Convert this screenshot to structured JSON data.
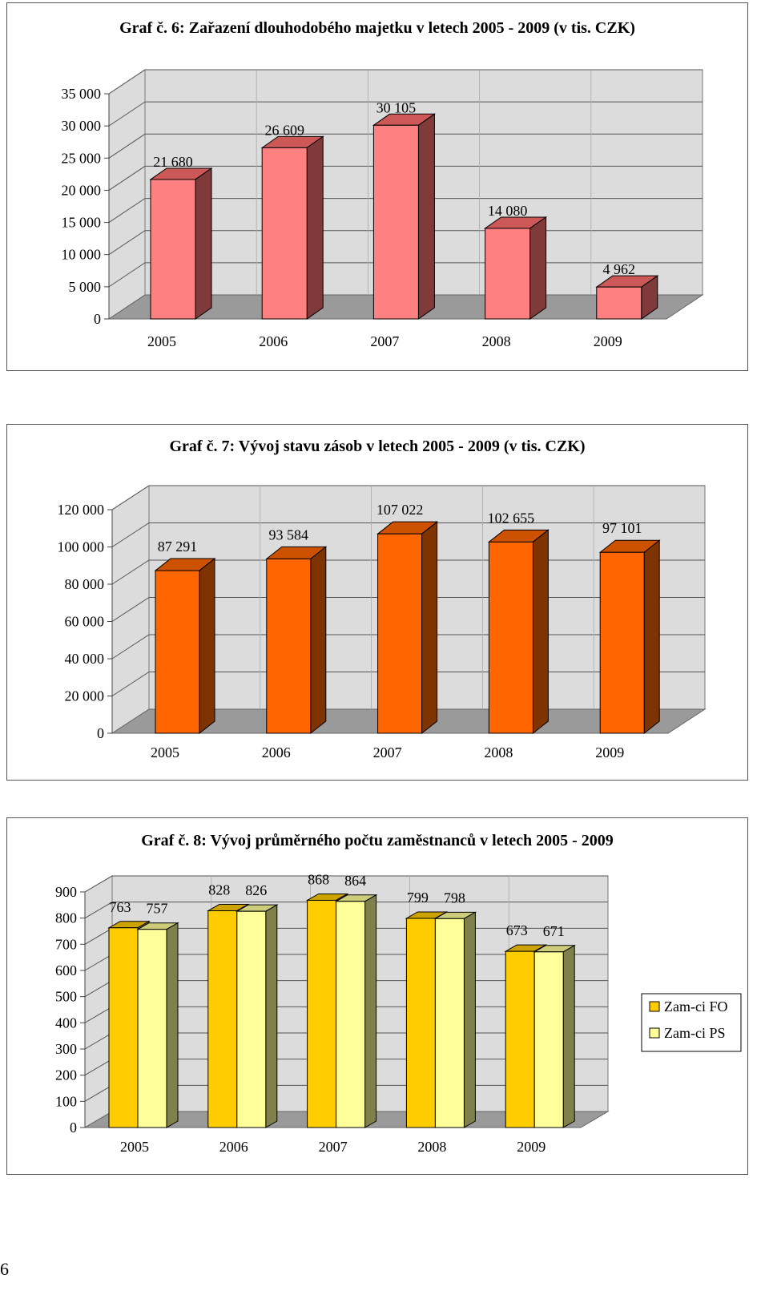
{
  "page_number": "6",
  "chart_data": [
    {
      "type": "bar",
      "title": "Graf č. 6: Zařazení dlouhodobého majetku v letech 2005 - 2009 (v tis. CZK)",
      "categories": [
        "2005",
        "2006",
        "2007",
        "2008",
        "2009"
      ],
      "series": [
        {
          "name": "",
          "values": [
            21680,
            26609,
            30105,
            14080,
            4962
          ],
          "labels": [
            "21 680",
            "26 609",
            "30 105",
            "14 080",
            "4 962"
          ]
        }
      ],
      "yticks": [
        0,
        5000,
        10000,
        15000,
        20000,
        25000,
        30000,
        35000
      ],
      "ytick_labels": [
        "0",
        "5 000",
        "10 000",
        "15 000",
        "20 000",
        "25 000",
        "30 000",
        "35 000"
      ],
      "ylim": [
        0,
        35000
      ],
      "xlabel": "",
      "ylabel": "",
      "grid": true,
      "legend": "none",
      "colors": {
        "front": "#FF8080",
        "side": "#803A3A",
        "top": "#CC5858",
        "floor": "#9A9A9A",
        "wall": "#DCDCDC"
      }
    },
    {
      "type": "bar",
      "title": "Graf č. 7: Vývoj stavu zásob v letech 2005 - 2009 (v tis. CZK)",
      "categories": [
        "2005",
        "2006",
        "2007",
        "2008",
        "2009"
      ],
      "series": [
        {
          "name": "",
          "values": [
            87291,
            93584,
            107022,
            102655,
            97101
          ],
          "labels": [
            "87 291",
            "93 584",
            "107 022",
            "102 655",
            "97 101"
          ]
        }
      ],
      "yticks": [
        0,
        20000,
        40000,
        60000,
        80000,
        100000,
        120000
      ],
      "ytick_labels": [
        "0",
        "20 000",
        "40 000",
        "60 000",
        "80 000",
        "100 000",
        "120 000"
      ],
      "ylim": [
        0,
        120000
      ],
      "xlabel": "",
      "ylabel": "",
      "grid": true,
      "legend": "none",
      "colors": {
        "front": "#FF6600",
        "side": "#7F3300",
        "top": "#CC5200",
        "floor": "#9A9A9A",
        "wall": "#DCDCDC"
      }
    },
    {
      "type": "bar",
      "title": "Graf č. 8: Vývoj průměrného počtu zaměstnanců v letech 2005 - 2009",
      "categories": [
        "2005",
        "2006",
        "2007",
        "2008",
        "2009"
      ],
      "series": [
        {
          "name": "Zam-ci FO",
          "values": [
            763,
            828,
            868,
            799,
            673
          ],
          "labels": [
            "763",
            "828",
            "868",
            "799",
            "673"
          ]
        },
        {
          "name": "Zam-ci PS",
          "values": [
            757,
            826,
            864,
            798,
            671
          ],
          "labels": [
            "757",
            "826",
            "864",
            "798",
            "671"
          ]
        }
      ],
      "yticks": [
        0,
        100,
        200,
        300,
        400,
        500,
        600,
        700,
        800,
        900
      ],
      "ytick_labels": [
        "0",
        "100",
        "200",
        "300",
        "400",
        "500",
        "600",
        "700",
        "800",
        "900"
      ],
      "ylim": [
        0,
        900
      ],
      "xlabel": "",
      "ylabel": "",
      "grid": true,
      "legend": "right",
      "colors": {
        "fo_front": "#FFCC00",
        "fo_side": "#806600",
        "fo_top": "#CCA300",
        "ps_front": "#FFFF99",
        "ps_side": "#80804C",
        "ps_top": "#CCCC7A",
        "floor": "#9A9A9A",
        "wall": "#DCDCDC"
      }
    }
  ]
}
